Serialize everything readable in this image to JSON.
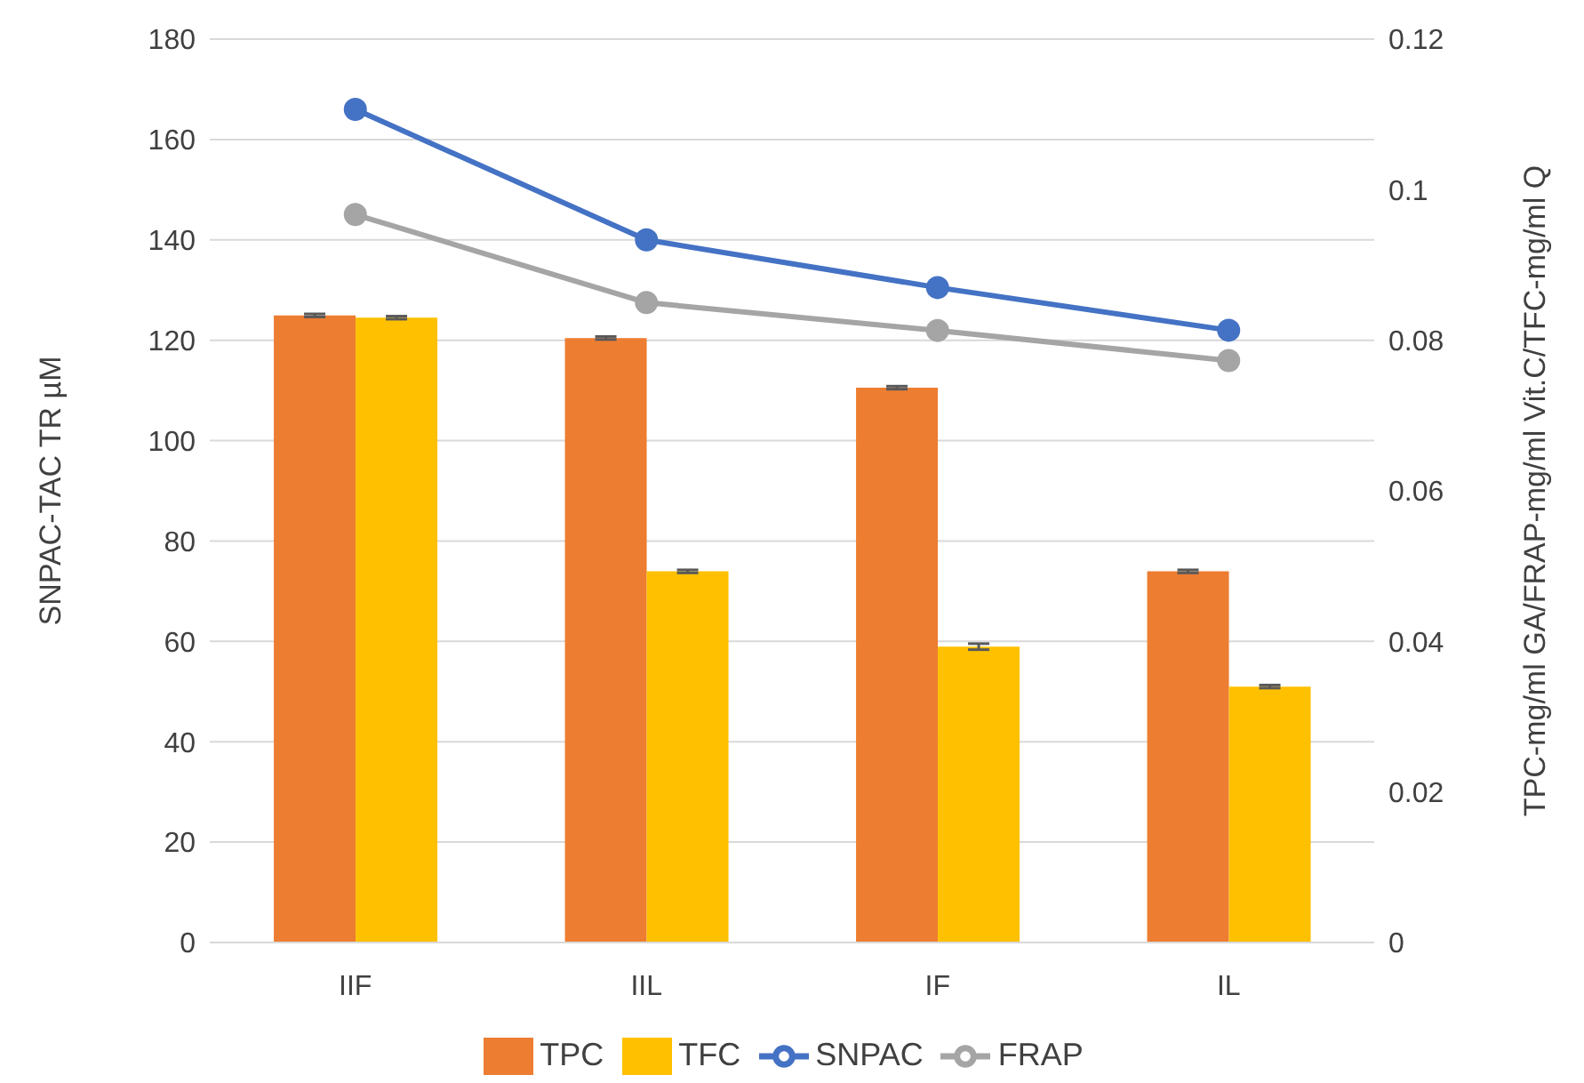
{
  "chart_data": {
    "type": "bar",
    "categories": [
      "IIF",
      "IIL",
      "IF",
      "IL"
    ],
    "ylabel": "SNPAC-TAC TR µM",
    "y2label": "TPC-mg/ml GA/FRAP-mg/ml Vit.C/TFC-mg/ml Q",
    "ylim": [
      0,
      180
    ],
    "yticks": [
      0,
      20,
      40,
      60,
      80,
      100,
      120,
      140,
      160,
      180
    ],
    "y2lim": [
      0,
      0.12
    ],
    "y2ticks": [
      0,
      0.02,
      0.04,
      0.06,
      0.08,
      0.1,
      0.12
    ],
    "grid": "y",
    "legend": "bottom",
    "marker": "circle",
    "series": [
      {
        "name": "TPC",
        "axis": "y2",
        "color": "#ed7d31",
        "values": [
          0.0833,
          0.0803,
          0.0737,
          0.0493
        ],
        "errors": [
          0.0002,
          0.0002,
          0.0002,
          0.0002
        ]
      },
      {
        "name": "TFC",
        "axis": "y2",
        "color": "#ffc000",
        "values": [
          0.083,
          0.0493,
          0.0393,
          0.034
        ],
        "errors": [
          0.0002,
          0.0002,
          0.0004,
          0.0002
        ]
      },
      {
        "name": "SNPAC",
        "type": "line",
        "color": "#4472c4",
        "values": [
          166,
          140,
          130.5,
          122
        ]
      },
      {
        "name": "FRAP",
        "type": "line",
        "axis": "y2",
        "color": "#a5a5a5",
        "values": [
          0.0967,
          0.085,
          0.0813,
          0.0773
        ]
      }
    ]
  }
}
